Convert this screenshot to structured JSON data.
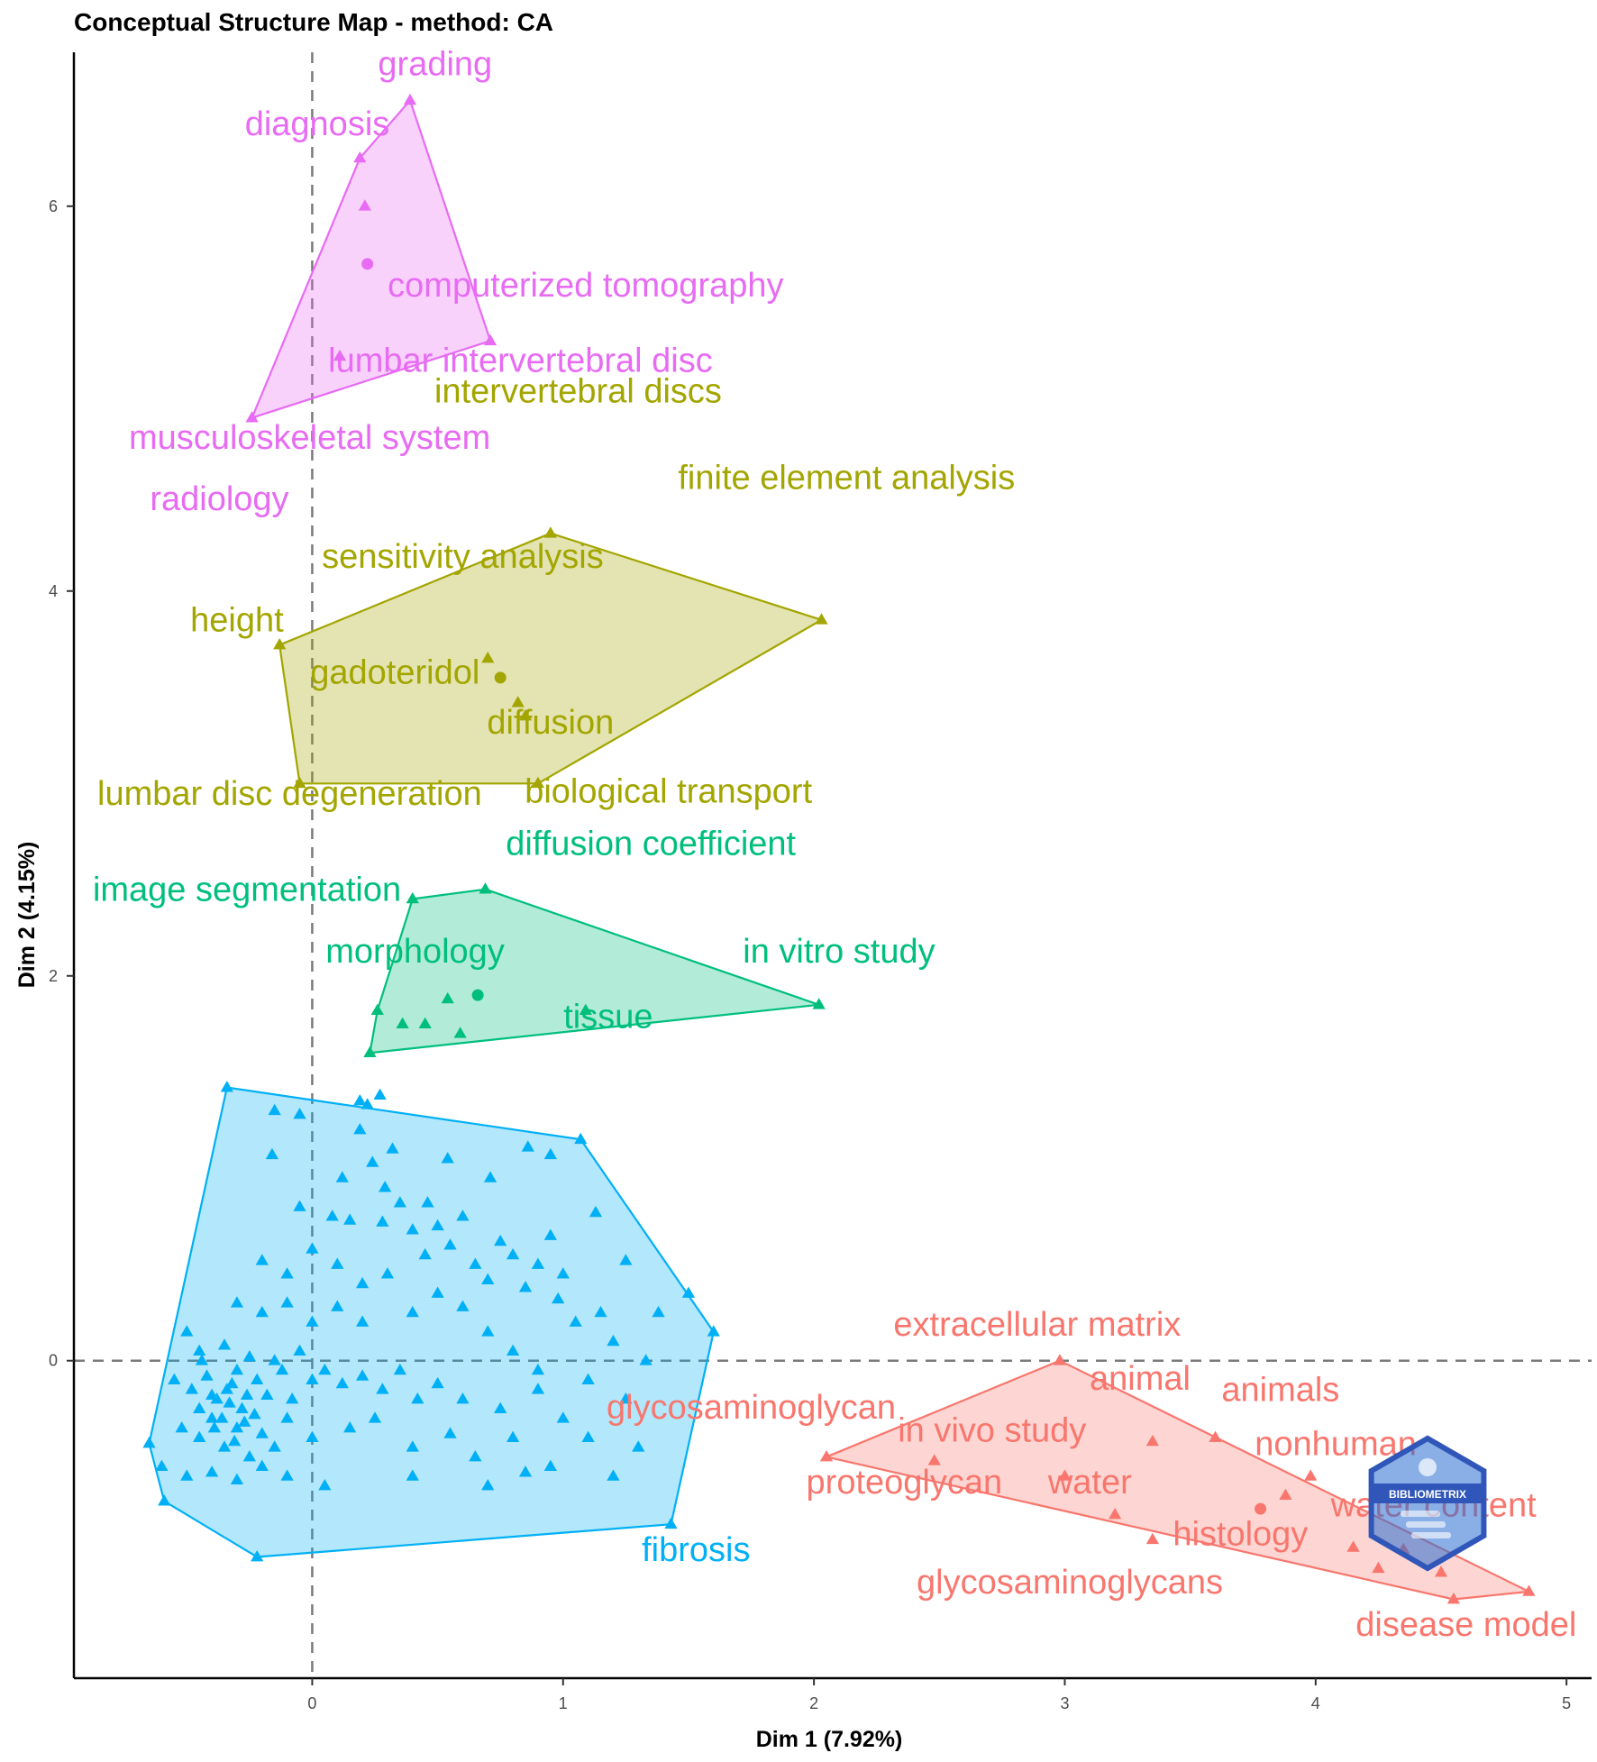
{
  "chart_data": {
    "type": "scatter",
    "title": "Conceptual Structure Map - method: CA",
    "xlabel": "Dim 1 (7.92%)",
    "ylabel": "Dim 2 (4.15%)",
    "xlim": [
      -0.95,
      5.1
    ],
    "ylim": [
      -1.65,
      6.8
    ],
    "xticks": [
      0,
      1,
      2,
      3,
      4,
      5
    ],
    "yticks": [
      0,
      2,
      4,
      6
    ],
    "reference_lines": {
      "x": 0,
      "y": 0
    },
    "watermark": "BIBLIOMETRIX",
    "clusters": [
      {
        "color": "#e76bf3",
        "centroid": [
          0.22,
          5.7
        ],
        "hull": [
          [
            0.39,
            6.55
          ],
          [
            0.71,
            5.3
          ],
          [
            -0.24,
            4.9
          ],
          [
            0.19,
            6.25
          ]
        ],
        "points": [
          [
            0.39,
            6.55
          ],
          [
            0.19,
            6.25
          ],
          [
            0.21,
            6.0
          ],
          [
            0.71,
            5.3
          ],
          [
            0.11,
            5.22
          ],
          [
            -0.24,
            4.9
          ]
        ],
        "labels": [
          {
            "text": "grading",
            "x": 0.49,
            "y": 6.68
          },
          {
            "text": "diagnosis",
            "x": 0.02,
            "y": 6.37
          },
          {
            "text": "computerized tomography",
            "x": 1.09,
            "y": 5.53
          },
          {
            "text": "lumbar intervertebral disc",
            "x": 0.83,
            "y": 5.14
          },
          {
            "text": "musculoskeletal system",
            "x": -0.01,
            "y": 4.74
          },
          {
            "text": "radiology",
            "x": -0.37,
            "y": 4.42
          }
        ]
      },
      {
        "color": "#a3a500",
        "centroid": [
          0.75,
          3.55
        ],
        "hull": [
          [
            0.95,
            4.3
          ],
          [
            2.03,
            3.85
          ],
          [
            0.9,
            3.0
          ],
          [
            -0.05,
            3.0
          ],
          [
            -0.13,
            3.72
          ]
        ],
        "points": [
          [
            0.95,
            4.3
          ],
          [
            2.03,
            3.85
          ],
          [
            -0.13,
            3.72
          ],
          [
            0.7,
            3.65
          ],
          [
            0.82,
            3.42
          ],
          [
            0.85,
            3.35
          ],
          [
            -0.05,
            3.0
          ],
          [
            0.9,
            3.0
          ]
        ],
        "labels": [
          {
            "text": "intervertebral discs",
            "x": 1.06,
            "y": 4.98
          },
          {
            "text": "finite element analysis",
            "x": 2.13,
            "y": 4.53
          },
          {
            "text": "sensitivity analysis",
            "x": 0.6,
            "y": 4.12
          },
          {
            "text": "height",
            "x": -0.3,
            "y": 3.79
          },
          {
            "text": "gadoteridol",
            "x": 0.33,
            "y": 3.52
          },
          {
            "text": "diffusion",
            "x": 0.95,
            "y": 3.26
          },
          {
            "text": "lumbar disc degeneration",
            "x": -0.09,
            "y": 2.89
          },
          {
            "text": "biological transport",
            "x": 1.42,
            "y": 2.9
          }
        ]
      },
      {
        "color": "#00bf7d",
        "centroid": [
          0.66,
          1.9
        ],
        "hull": [
          [
            0.69,
            2.45
          ],
          [
            2.02,
            1.85
          ],
          [
            0.23,
            1.6
          ],
          [
            0.26,
            1.82
          ],
          [
            0.4,
            2.4
          ]
        ],
        "points": [
          [
            0.69,
            2.45
          ],
          [
            0.4,
            2.4
          ],
          [
            2.02,
            1.85
          ],
          [
            0.26,
            1.82
          ],
          [
            1.09,
            1.82
          ],
          [
            0.36,
            1.75
          ],
          [
            0.45,
            1.75
          ],
          [
            0.54,
            1.88
          ],
          [
            0.59,
            1.7
          ],
          [
            0.23,
            1.6
          ]
        ],
        "labels": [
          {
            "text": "diffusion coefficient",
            "x": 1.35,
            "y": 2.63
          },
          {
            "text": "image segmentation",
            "x": -0.26,
            "y": 2.39
          },
          {
            "text": "morphology",
            "x": 0.41,
            "y": 2.07
          },
          {
            "text": "in vitro study",
            "x": 2.1,
            "y": 2.07
          },
          {
            "text": "tissue",
            "x": 1.18,
            "y": 1.73
          }
        ]
      },
      {
        "color": "#00b0f6",
        "hull": [
          [
            -0.34,
            1.42
          ],
          [
            1.07,
            1.15
          ],
          [
            1.6,
            0.15
          ],
          [
            1.43,
            -0.85
          ],
          [
            -0.22,
            -1.02
          ],
          [
            -0.59,
            -0.73
          ],
          [
            -0.65,
            -0.43
          ]
        ],
        "points": [
          [
            -0.34,
            1.42
          ],
          [
            1.07,
            1.15
          ],
          [
            1.6,
            0.15
          ],
          [
            1.43,
            -0.85
          ],
          [
            -0.22,
            -1.02
          ],
          [
            -0.59,
            -0.73
          ],
          [
            -0.65,
            -0.43
          ],
          [
            -0.15,
            1.3
          ],
          [
            0.19,
            1.35
          ],
          [
            0.27,
            1.38
          ],
          [
            0.19,
            1.2
          ],
          [
            0.32,
            1.1
          ],
          [
            -0.05,
            1.28
          ],
          [
            0.22,
            1.33
          ],
          [
            0.24,
            1.03
          ],
          [
            0.54,
            1.05
          ],
          [
            0.86,
            1.11
          ],
          [
            0.95,
            1.07
          ],
          [
            -0.16,
            1.07
          ],
          [
            0.12,
            0.95
          ],
          [
            0.29,
            0.9
          ],
          [
            0.71,
            0.95
          ],
          [
            0.35,
            0.82
          ],
          [
            0.46,
            0.82
          ],
          [
            0.6,
            0.75
          ],
          [
            1.13,
            0.77
          ],
          [
            -0.05,
            0.8
          ],
          [
            0.08,
            0.75
          ],
          [
            0.15,
            0.73
          ],
          [
            0.28,
            0.72
          ],
          [
            0.4,
            0.68
          ],
          [
            0.5,
            0.7
          ],
          [
            0.75,
            0.62
          ],
          [
            0.95,
            0.65
          ],
          [
            1.25,
            0.52
          ],
          [
            1.38,
            0.25
          ],
          [
            1.5,
            0.35
          ],
          [
            1.33,
            0.0
          ],
          [
            0.7,
            0.42
          ],
          [
            0.85,
            0.38
          ],
          [
            0.98,
            0.32
          ],
          [
            1.05,
            0.2
          ],
          [
            1.15,
            0.25
          ],
          [
            1.2,
            0.1
          ],
          [
            -0.2,
            0.52
          ],
          [
            -0.1,
            0.45
          ],
          [
            0.0,
            0.58
          ],
          [
            0.1,
            0.5
          ],
          [
            0.2,
            0.4
          ],
          [
            0.3,
            0.45
          ],
          [
            -0.3,
            0.3
          ],
          [
            -0.2,
            0.25
          ],
          [
            -0.1,
            0.3
          ],
          [
            0.0,
            0.2
          ],
          [
            0.1,
            0.28
          ],
          [
            0.2,
            0.2
          ],
          [
            0.4,
            0.25
          ],
          [
            0.5,
            0.35
          ],
          [
            0.6,
            0.28
          ],
          [
            0.7,
            0.15
          ],
          [
            0.8,
            0.05
          ],
          [
            0.9,
            -0.05
          ],
          [
            -0.5,
            0.15
          ],
          [
            -0.45,
            0.05
          ],
          [
            -0.35,
            0.08
          ],
          [
            -0.25,
            0.02
          ],
          [
            -0.15,
            0.0
          ],
          [
            -0.05,
            0.05
          ],
          [
            -0.55,
            -0.1
          ],
          [
            -0.48,
            -0.15
          ],
          [
            -0.42,
            -0.08
          ],
          [
            -0.38,
            -0.2
          ],
          [
            -0.32,
            -0.12
          ],
          [
            -0.28,
            -0.25
          ],
          [
            -0.22,
            -0.1
          ],
          [
            -0.18,
            -0.18
          ],
          [
            -0.12,
            -0.05
          ],
          [
            -0.08,
            -0.2
          ],
          [
            0.0,
            -0.1
          ],
          [
            0.05,
            -0.05
          ],
          [
            0.12,
            -0.12
          ],
          [
            0.2,
            -0.08
          ],
          [
            0.28,
            -0.15
          ],
          [
            0.35,
            -0.05
          ],
          [
            0.42,
            -0.2
          ],
          [
            0.5,
            -0.12
          ],
          [
            -0.52,
            -0.35
          ],
          [
            -0.45,
            -0.4
          ],
          [
            -0.4,
            -0.3
          ],
          [
            -0.35,
            -0.45
          ],
          [
            -0.3,
            -0.35
          ],
          [
            -0.25,
            -0.5
          ],
          [
            -0.2,
            -0.38
          ],
          [
            -0.15,
            -0.45
          ],
          [
            -0.1,
            -0.3
          ],
          [
            0.0,
            -0.4
          ],
          [
            0.15,
            -0.35
          ],
          [
            0.25,
            -0.3
          ],
          [
            0.4,
            -0.45
          ],
          [
            0.55,
            -0.38
          ],
          [
            0.65,
            -0.5
          ],
          [
            0.8,
            -0.4
          ],
          [
            0.95,
            -0.55
          ],
          [
            1.1,
            -0.4
          ],
          [
            1.2,
            -0.6
          ],
          [
            1.3,
            -0.45
          ],
          [
            -0.6,
            -0.55
          ],
          [
            -0.5,
            -0.6
          ],
          [
            -0.4,
            -0.58
          ],
          [
            -0.3,
            -0.62
          ],
          [
            -0.2,
            -0.55
          ],
          [
            -0.1,
            -0.6
          ],
          [
            0.05,
            -0.65
          ],
          [
            0.4,
            -0.6
          ],
          [
            0.7,
            -0.65
          ],
          [
            0.85,
            -0.58
          ],
          [
            -0.45,
            -0.25
          ],
          [
            -0.4,
            -0.18
          ],
          [
            -0.36,
            -0.3
          ],
          [
            -0.33,
            -0.22
          ],
          [
            -0.3,
            -0.05
          ],
          [
            -0.27,
            -0.32
          ],
          [
            -0.44,
            0.0
          ],
          [
            -0.39,
            -0.35
          ],
          [
            -0.34,
            -0.15
          ],
          [
            -0.31,
            -0.42
          ],
          [
            -0.26,
            -0.18
          ],
          [
            -0.23,
            -0.28
          ],
          [
            0.6,
            -0.2
          ],
          [
            0.75,
            -0.25
          ],
          [
            0.9,
            -0.15
          ],
          [
            1.0,
            -0.3
          ],
          [
            1.1,
            -0.1
          ],
          [
            1.25,
            -0.2
          ],
          [
            0.45,
            0.55
          ],
          [
            0.55,
            0.6
          ],
          [
            0.65,
            0.5
          ],
          [
            0.8,
            0.55
          ],
          [
            0.9,
            0.5
          ],
          [
            1.0,
            0.45
          ]
        ],
        "labels": [
          {
            "text": "fibrosis",
            "x": 1.53,
            "y": -1.04
          }
        ]
      },
      {
        "color": "#f8766d",
        "centroid": [
          3.78,
          -0.77
        ],
        "hull": [
          [
            2.98,
            0.0
          ],
          [
            4.85,
            -1.2
          ],
          [
            4.55,
            -1.24
          ],
          [
            2.05,
            -0.5
          ]
        ],
        "points": [
          [
            2.98,
            0.0
          ],
          [
            2.05,
            -0.5
          ],
          [
            2.48,
            -0.52
          ],
          [
            3.35,
            -0.42
          ],
          [
            3.6,
            -0.4
          ],
          [
            3.98,
            -0.6
          ],
          [
            3.0,
            -0.6
          ],
          [
            3.2,
            -0.8
          ],
          [
            3.35,
            -0.93
          ],
          [
            3.88,
            -0.7
          ],
          [
            4.15,
            -0.97
          ],
          [
            4.35,
            -0.98
          ],
          [
            4.25,
            -1.08
          ],
          [
            4.5,
            -1.1
          ],
          [
            4.85,
            -1.2
          ],
          [
            4.55,
            -1.24
          ]
        ],
        "labels": [
          {
            "text": "extracellular matrix",
            "x": 2.89,
            "y": 0.13
          },
          {
            "text": "animal",
            "x": 3.3,
            "y": -0.15
          },
          {
            "text": "animals",
            "x": 3.86,
            "y": -0.21
          },
          {
            "text": "glycosaminoglycan",
            "x": 1.75,
            "y": -0.3
          },
          {
            "text": "in vivo study",
            "x": 2.71,
            "y": -0.42
          },
          {
            "text": "nonhuman",
            "x": 4.08,
            "y": -0.49
          },
          {
            "text": "proteoglycan",
            "x": 2.36,
            "y": -0.69
          },
          {
            "text": "water",
            "x": 3.1,
            "y": -0.69
          },
          {
            "text": "water content",
            "x": 4.47,
            "y": -0.81
          },
          {
            "text": "histology",
            "x": 3.7,
            "y": -0.96
          },
          {
            "text": "glycosaminoglycans",
            "x": 3.02,
            "y": -1.21
          },
          {
            "text": "disease model",
            "x": 4.6,
            "y": -1.43
          }
        ]
      }
    ]
  }
}
